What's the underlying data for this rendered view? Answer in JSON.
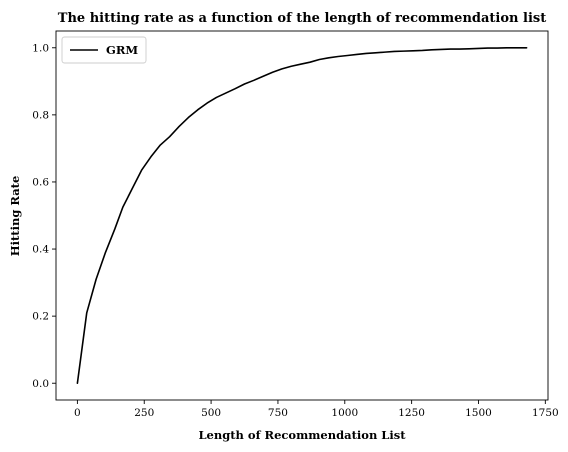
{
  "chart_data": {
    "type": "line",
    "title": "The hitting rate as a function of the length of recommendation list",
    "xlabel": "Length of Recommendation List",
    "ylabel": "Hitting Rate",
    "xlim": [
      -80,
      1760
    ],
    "ylim": [
      -0.05,
      1.05
    ],
    "xticks": [
      0,
      250,
      500,
      750,
      1000,
      1250,
      1500,
      1750
    ],
    "yticks": [
      0.0,
      0.2,
      0.4,
      0.6,
      0.8,
      1.0
    ],
    "xtick_labels": [
      "0",
      "250",
      "500",
      "750",
      "1000",
      "1250",
      "1500",
      "1750"
    ],
    "ytick_labels": [
      "0.0",
      "0.2",
      "0.4",
      "0.6",
      "0.8",
      "1.0"
    ],
    "grid": false,
    "legend": "top-left",
    "series": [
      {
        "name": "GRM",
        "color": "#000000",
        "x": [
          0,
          35,
          70,
          105,
          140,
          170,
          205,
          240,
          275,
          310,
          345,
          380,
          415,
          450,
          485,
          520,
          555,
          590,
          625,
          660,
          695,
          730,
          765,
          800,
          835,
          870,
          905,
          940,
          975,
          1010,
          1045,
          1080,
          1115,
          1150,
          1185,
          1220,
          1255,
          1290,
          1325,
          1360,
          1395,
          1430,
          1465,
          1500,
          1535,
          1570,
          1605,
          1640,
          1680
        ],
        "y": [
          0.0,
          0.21,
          0.31,
          0.39,
          0.46,
          0.525,
          0.58,
          0.635,
          0.675,
          0.71,
          0.735,
          0.765,
          0.792,
          0.815,
          0.835,
          0.852,
          0.865,
          0.878,
          0.892,
          0.903,
          0.915,
          0.927,
          0.937,
          0.945,
          0.951,
          0.957,
          0.965,
          0.97,
          0.974,
          0.977,
          0.98,
          0.983,
          0.985,
          0.987,
          0.989,
          0.99,
          0.991,
          0.992,
          0.994,
          0.995,
          0.996,
          0.996,
          0.997,
          0.998,
          0.999,
          0.999,
          1.0,
          1.0,
          1.0
        ]
      }
    ]
  }
}
